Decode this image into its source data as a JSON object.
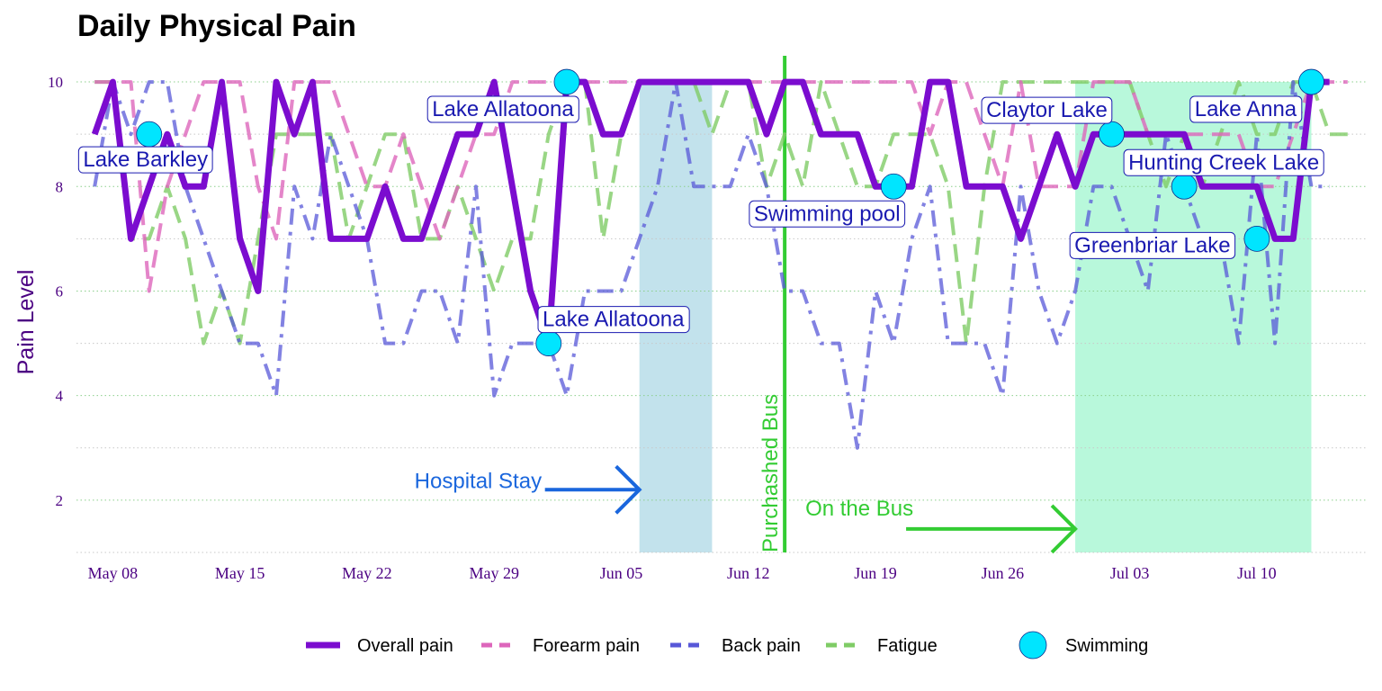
{
  "chart_data": {
    "type": "line",
    "title": "Daily Physical Pain",
    "ylabel": "Pain Level",
    "xlabel": "",
    "ylim": [
      1,
      10.5
    ],
    "y_ticks": [
      2,
      4,
      6,
      8,
      10
    ],
    "x_range": [
      "2022-05-06",
      "2022-07-16"
    ],
    "x_ticks": [
      {
        "date": "2022-05-08",
        "label": "May 08"
      },
      {
        "date": "2022-05-15",
        "label": "May 15"
      },
      {
        "date": "2022-05-22",
        "label": "May 22"
      },
      {
        "date": "2022-05-29",
        "label": "May 29"
      },
      {
        "date": "2022-06-05",
        "label": "Jun 05"
      },
      {
        "date": "2022-06-12",
        "label": "Jun 12"
      },
      {
        "date": "2022-06-19",
        "label": "Jun 19"
      },
      {
        "date": "2022-06-26",
        "label": "Jun 26"
      },
      {
        "date": "2022-07-03",
        "label": "Jul 03"
      },
      {
        "date": "2022-07-10",
        "label": "Jul 10"
      }
    ],
    "grid": true,
    "legend_position": "bottom",
    "start_date": "2022-05-07",
    "series": [
      {
        "name": "Overall pain",
        "color": "#7b0ccf",
        "style": "solid",
        "width": 7,
        "opacity": 1,
        "values": [
          9,
          10,
          7,
          8,
          9,
          8,
          8,
          10,
          7,
          6,
          10,
          9,
          10,
          7,
          7,
          7,
          8,
          7,
          7,
          8,
          9,
          9,
          10,
          8,
          6,
          5,
          10,
          10,
          9,
          9,
          10,
          10,
          10,
          10,
          10,
          10,
          10,
          9,
          10,
          10,
          9,
          9,
          9,
          8,
          8,
          8,
          10,
          10,
          8,
          8,
          8,
          7,
          8,
          9,
          8,
          9,
          9,
          9,
          9,
          9,
          9,
          8,
          8,
          8,
          8,
          7,
          7,
          10,
          10
        ]
      },
      {
        "name": "Forearm pain",
        "color": "#dd66bb",
        "style": "dashed",
        "width": 4,
        "opacity": 0.8,
        "values": [
          10,
          10,
          10,
          6,
          8,
          9,
          10,
          10,
          10,
          8,
          7,
          10,
          10,
          10,
          9,
          8,
          8,
          9,
          8,
          7,
          8,
          9,
          9,
          10,
          10,
          10,
          10,
          10,
          10,
          10,
          10,
          10,
          10,
          10,
          10,
          10,
          10,
          10,
          10,
          10,
          10,
          10,
          10,
          10,
          10,
          10,
          9,
          10,
          10,
          9,
          8,
          10,
          8,
          8,
          8,
          10,
          10,
          10,
          9,
          9,
          9,
          9,
          9,
          9,
          8,
          8,
          9,
          10,
          10,
          10
        ]
      },
      {
        "name": "Back pain",
        "color": "#5858d8",
        "style": "dashdot",
        "width": 4,
        "opacity": 0.75,
        "values": [
          8,
          10,
          9,
          10,
          10,
          8,
          7,
          6,
          5,
          5,
          4,
          8,
          7,
          9,
          8,
          7,
          5,
          5,
          6,
          6,
          5,
          8,
          4,
          5,
          5,
          5,
          4,
          6,
          6,
          6,
          7,
          8,
          10,
          8,
          8,
          8,
          9,
          8,
          6,
          6,
          5,
          5,
          3,
          6,
          5,
          7,
          8,
          5,
          5,
          5,
          4,
          8,
          6,
          5,
          6,
          8,
          8,
          7,
          6,
          9,
          8,
          7,
          7,
          5,
          9,
          5,
          10,
          8,
          8
        ]
      },
      {
        "name": "Fatigue",
        "color": "#7fcc66",
        "style": "dashed",
        "width": 4,
        "opacity": 0.8,
        "values": [
          10,
          10,
          7,
          7,
          8,
          7,
          5,
          6,
          5,
          7,
          9,
          9,
          9,
          9,
          7,
          8,
          9,
          9,
          7,
          7,
          8,
          7,
          6,
          7,
          7,
          9,
          10,
          10,
          7,
          9,
          10,
          10,
          10,
          10,
          9,
          10,
          10,
          8,
          9,
          8,
          10,
          9,
          8,
          8,
          9,
          9,
          9,
          8,
          5,
          8,
          10,
          10,
          10,
          10,
          10,
          10,
          10,
          10,
          9,
          8,
          9,
          8,
          9,
          10,
          9,
          9,
          10,
          10,
          9,
          9
        ]
      }
    ],
    "swimming": {
      "name": "Swimming",
      "color": "#00e5ff",
      "points": [
        {
          "date": "2022-05-10",
          "value": 9,
          "label": "Lake Barkley"
        },
        {
          "date": "2022-06-01",
          "value": 5,
          "label": "Lake Allatoona"
        },
        {
          "date": "2022-06-02",
          "value": 10,
          "label": "Lake Allatoona"
        },
        {
          "date": "2022-06-20",
          "value": 8,
          "label": "Swimming pool"
        },
        {
          "date": "2022-07-02",
          "value": 9,
          "label": "Claytor Lake"
        },
        {
          "date": "2022-07-06",
          "value": 8,
          "label": "Hunting Creek Lake"
        },
        {
          "date": "2022-07-10",
          "value": 7,
          "label": "Greenbriar Lake"
        },
        {
          "date": "2022-07-13",
          "value": 10,
          "label": "Lake Anna"
        }
      ]
    },
    "regions": [
      {
        "start": "2022-06-06",
        "end": "2022-06-10",
        "y_min": 1,
        "y_max": 10,
        "color": "#add8e6",
        "label": "Hospital Stay",
        "label_color": "#1a66dd"
      },
      {
        "start": "2022-06-30",
        "end": "2022-07-13",
        "y_min": 1,
        "y_max": 10,
        "color": "#9af5cc",
        "label": "On the Bus",
        "label_color": "#33cc33"
      }
    ],
    "vline": {
      "date": "2022-06-14",
      "label": "Purchashed Bus",
      "color": "#33cc33"
    }
  }
}
